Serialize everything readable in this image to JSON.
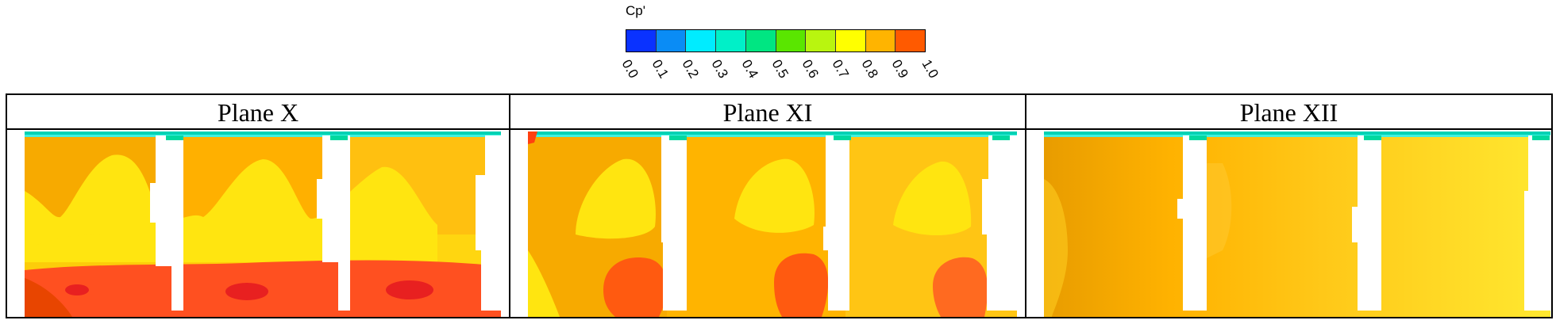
{
  "legend": {
    "title": "Cp'",
    "ticks": [
      "0.0",
      "0.1",
      "0.2",
      "0.3",
      "0.4",
      "0.5",
      "0.6",
      "0.7",
      "0.8",
      "0.9",
      "1.0"
    ],
    "colors": [
      "#0a32ff",
      "#0a8cf5",
      "#00ecff",
      "#00f0c8",
      "#00e682",
      "#5ae600",
      "#b9f50f",
      "#ffff00",
      "#ffb400",
      "#ff5a00"
    ]
  },
  "panels": [
    {
      "title": "Plane X"
    },
    {
      "title": "Plane XI"
    },
    {
      "title": "Plane XII"
    }
  ]
}
